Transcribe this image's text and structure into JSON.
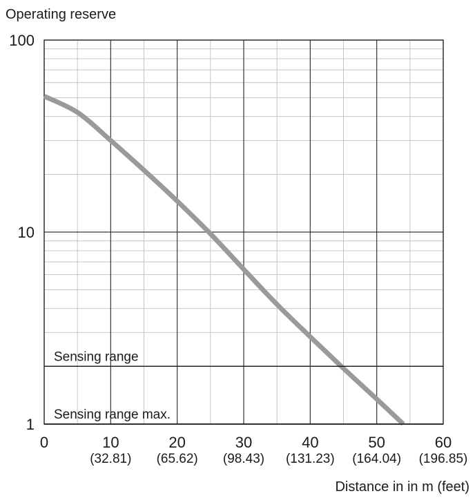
{
  "chart_data": {
    "type": "line",
    "title": "",
    "ylabel": "Operating reserve",
    "xlabel": "Distance in in m (feet)",
    "y_scale": "log",
    "ylim": [
      1,
      100
    ],
    "xlim": [
      0,
      60
    ],
    "y_ticks": [
      {
        "value": 1,
        "label": "1"
      },
      {
        "value": 10,
        "label": "10"
      },
      {
        "value": 100,
        "label": "100"
      }
    ],
    "x_ticks": [
      {
        "value": 0,
        "label": "0",
        "sub": ""
      },
      {
        "value": 10,
        "label": "10",
        "sub": "(32.81)"
      },
      {
        "value": 20,
        "label": "20",
        "sub": "(65.62)"
      },
      {
        "value": 30,
        "label": "30",
        "sub": "(98.43)"
      },
      {
        "value": 40,
        "label": "40",
        "sub": "(131.23)"
      },
      {
        "value": 50,
        "label": "50",
        "sub": "(164.04)"
      },
      {
        "value": 60,
        "label": "60",
        "sub": "(196.85)"
      }
    ],
    "grid": true,
    "annotations": [
      {
        "text": "Sensing range",
        "y": 2
      },
      {
        "text": "Sensing range max.",
        "y": 1
      }
    ],
    "series": [
      {
        "color": "#9a9a9a",
        "points": [
          [
            0,
            51
          ],
          [
            5,
            42
          ],
          [
            10,
            30
          ],
          [
            15,
            21
          ],
          [
            20,
            14.5
          ],
          [
            25,
            9.8
          ],
          [
            30,
            6.4
          ],
          [
            35,
            4.2
          ],
          [
            40,
            2.85
          ],
          [
            45,
            1.95
          ],
          [
            50,
            1.35
          ],
          [
            54,
            1.0
          ]
        ]
      }
    ]
  }
}
